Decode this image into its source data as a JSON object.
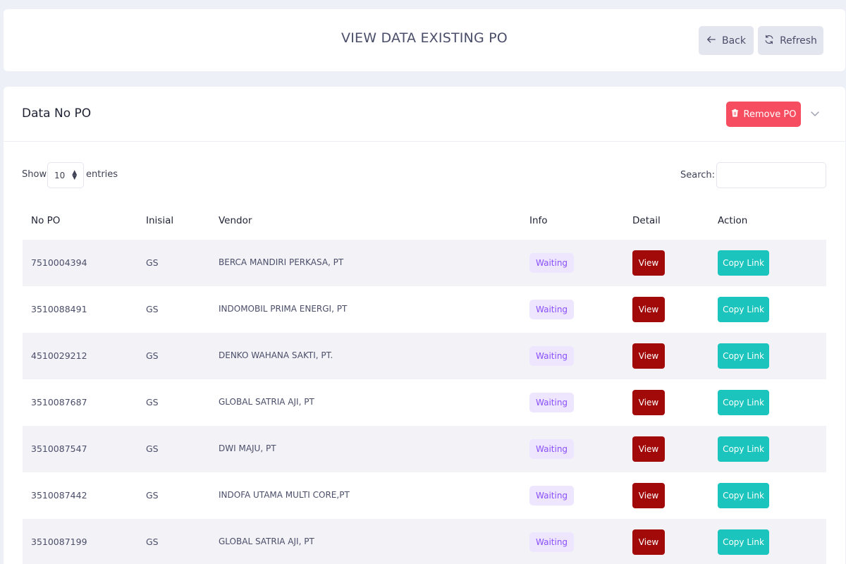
{
  "header": {
    "title": "VIEW DATA EXISTING PO",
    "back_label": "Back",
    "refresh_label": "Refresh"
  },
  "card": {
    "title": "Data No PO",
    "remove_label": "Remove PO"
  },
  "controls": {
    "show_label": "Show",
    "entries_value": "10",
    "entries_label": "entries",
    "search_label": "Search:",
    "search_value": ""
  },
  "table": {
    "columns": [
      "No PO",
      "Inisial",
      "Vendor",
      "Info",
      "Detail",
      "Action"
    ],
    "rows": [
      {
        "no_po": "7510004394",
        "inisial": "GS",
        "vendor": "BERCA MANDIRI PERKASA, PT",
        "info": "Waiting",
        "detail": "View",
        "action": "Copy Link"
      },
      {
        "no_po": "3510088491",
        "inisial": "GS",
        "vendor": "INDOMOBIL PRIMA ENERGI, PT",
        "info": "Waiting",
        "detail": "View",
        "action": "Copy Link"
      },
      {
        "no_po": "4510029212",
        "inisial": "GS",
        "vendor": "DENKO WAHANA SAKTI, PT.",
        "info": "Waiting",
        "detail": "View",
        "action": "Copy Link"
      },
      {
        "no_po": "3510087687",
        "inisial": "GS",
        "vendor": "GLOBAL SATRIA AJI, PT",
        "info": "Waiting",
        "detail": "View",
        "action": "Copy Link"
      },
      {
        "no_po": "3510087547",
        "inisial": "GS",
        "vendor": "DWI MAJU, PT",
        "info": "Waiting",
        "detail": "View",
        "action": "Copy Link"
      },
      {
        "no_po": "3510087442",
        "inisial": "GS",
        "vendor": "INDOFA UTAMA MULTI CORE,PT",
        "info": "Waiting",
        "detail": "View",
        "action": "Copy Link"
      },
      {
        "no_po": "3510087199",
        "inisial": "GS",
        "vendor": "GLOBAL SATRIA AJI, PT",
        "info": "Waiting",
        "detail": "View",
        "action": "Copy Link"
      }
    ]
  },
  "colors": {
    "remove": "#f64e60",
    "view": "#a20a0a",
    "copy": "#1bc5bd",
    "badge_bg": "#eee5ff",
    "badge_text": "#8950fc"
  }
}
